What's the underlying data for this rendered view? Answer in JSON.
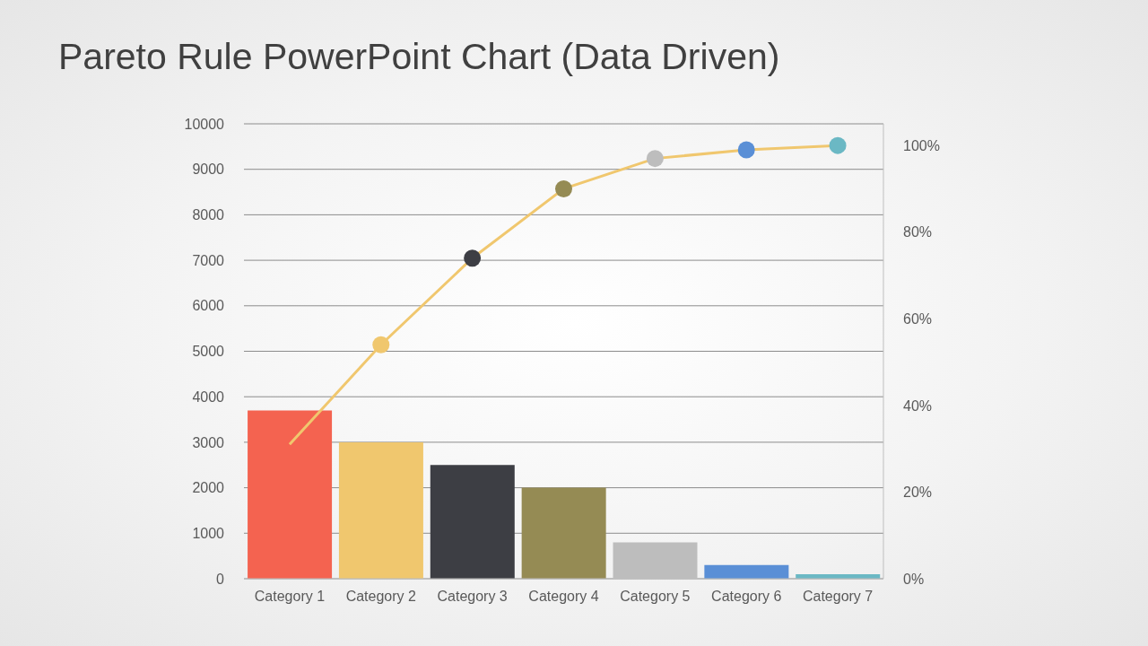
{
  "chart_data": {
    "type": "bar",
    "title": "Pareto Rule PowerPoint Chart (Data Driven)",
    "categories": [
      "Category 1",
      "Category 2",
      "Category 3",
      "Category 4",
      "Category 5",
      "Category 6",
      "Category 7"
    ],
    "series": [
      {
        "type": "bar",
        "colors": [
          "#f46350",
          "#f0c76e",
          "#3d3e44",
          "#958b54",
          "#bdbdbd",
          "#5a8fd6",
          "#6bb8c4"
        ],
        "values": [
          3700,
          3000,
          2500,
          2000,
          800,
          300,
          100
        ]
      },
      {
        "type": "line",
        "axis": "y2",
        "color": "#f0c76e",
        "marker": "circle",
        "colors": [
          null,
          "#f0c76e",
          "#3d3e44",
          "#958b54",
          "#bdbdbd",
          "#5a8fd6",
          "#6bb8c4"
        ],
        "values": [
          31,
          54,
          74,
          90,
          97,
          99,
          100
        ]
      }
    ],
    "ylim": [
      0,
      10000
    ],
    "yticks": [
      0,
      1000,
      2000,
      3000,
      4000,
      5000,
      6000,
      7000,
      8000,
      9000,
      10000
    ],
    "y2lim": [
      0,
      105
    ],
    "y2ticks": [
      {
        "value": 0,
        "label": "0%"
      },
      {
        "value": 20,
        "label": "20%"
      },
      {
        "value": 40,
        "label": "40%"
      },
      {
        "value": 60,
        "label": "60%"
      },
      {
        "value": 80,
        "label": "80%"
      },
      {
        "value": 100,
        "label": "100%"
      }
    ],
    "grid": true
  }
}
